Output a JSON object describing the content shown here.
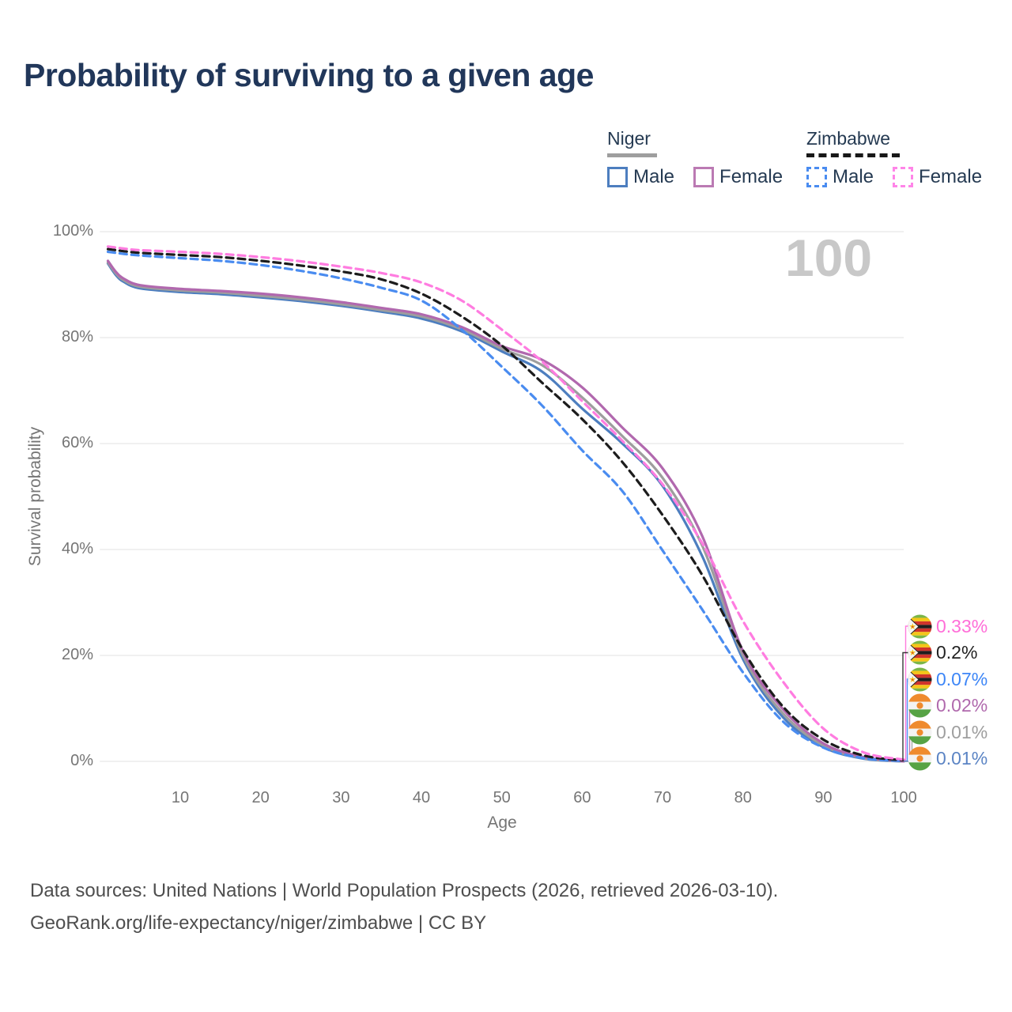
{
  "title": "Probability of surviving to a given age",
  "watermark": "100",
  "legend": {
    "groups": [
      {
        "name": "Niger",
        "line_style": "solid",
        "line_color": "#9e9e9e",
        "items": [
          {
            "label": "Male",
            "color": "#4d7ebf",
            "dashed": false,
            "checked": false
          },
          {
            "label": "Female",
            "color": "#bb7ab3",
            "dashed": false,
            "checked": false
          }
        ]
      },
      {
        "name": "Zimbabwe",
        "line_style": "dashed",
        "line_color": "#181818",
        "items": [
          {
            "label": "Male",
            "color": "#4a8cf0",
            "dashed": true,
            "checked": false
          },
          {
            "label": "Female",
            "color": "#ff85e8",
            "dashed": true,
            "checked": false
          }
        ]
      }
    ]
  },
  "chart_data": {
    "type": "line",
    "title": "Probability of surviving to a given age",
    "xlabel": "Age",
    "ylabel": "Survival probability",
    "xlim": [
      0,
      104
    ],
    "ylim": [
      0,
      100
    ],
    "grid": true,
    "x_ticks": [
      10,
      20,
      30,
      40,
      50,
      60,
      70,
      80,
      90,
      100
    ],
    "y_tick_values": [
      0,
      20,
      40,
      60,
      80,
      100
    ],
    "y_tick_labels": [
      "0%",
      "20%",
      "40%",
      "60%",
      "80%",
      "100%"
    ],
    "ages": [
      1,
      2,
      3,
      5,
      10,
      15,
      20,
      25,
      30,
      35,
      40,
      45,
      50,
      55,
      60,
      65,
      70,
      75,
      80,
      85,
      90,
      95,
      100
    ],
    "series": [
      {
        "id": "niger-male",
        "name": "Niger Male",
        "color": "#4d7ebf",
        "dash": false,
        "values": [
          94.0,
          91.8,
          90.5,
          89.3,
          88.6,
          88.2,
          87.6,
          86.9,
          86.0,
          84.9,
          83.6,
          81.2,
          77.4,
          73.6,
          66.6,
          60.0,
          52.0,
          38.5,
          19.3,
          8.3,
          2.7,
          0.5,
          0.01
        ]
      },
      {
        "id": "niger-total",
        "name": "Niger",
        "color": "#9e9e9e",
        "dash": false,
        "values": [
          94.2,
          92.1,
          90.8,
          89.6,
          88.9,
          88.5,
          87.9,
          87.2,
          86.3,
          85.2,
          84.0,
          81.6,
          77.9,
          74.8,
          68.7,
          61.4,
          53.5,
          40.5,
          20.0,
          9.0,
          3.0,
          0.6,
          0.01
        ]
      },
      {
        "id": "niger-female",
        "name": "Niger Female",
        "color": "#b168ae",
        "dash": false,
        "values": [
          94.5,
          92.4,
          91.1,
          89.9,
          89.2,
          88.8,
          88.3,
          87.6,
          86.7,
          85.6,
          84.4,
          82.0,
          78.4,
          75.8,
          70.6,
          63.0,
          55.3,
          42.3,
          20.8,
          9.8,
          3.4,
          0.8,
          0.02
        ]
      },
      {
        "id": "zimbabwe-male",
        "name": "Zimbabwe Male",
        "color": "#4a8cf0",
        "dash": true,
        "values": [
          96.2,
          96.0,
          95.8,
          95.5,
          95.0,
          94.5,
          93.7,
          92.6,
          91.2,
          89.4,
          87.0,
          81.5,
          74.5,
          67.2,
          58.7,
          51.0,
          39.8,
          28.5,
          16.8,
          7.5,
          2.6,
          0.6,
          0.07
        ]
      },
      {
        "id": "zimbabwe-total",
        "name": "Zimbabwe",
        "color": "#1c1c1c",
        "dash": true,
        "values": [
          96.7,
          96.5,
          96.3,
          96.0,
          95.6,
          95.2,
          94.5,
          93.6,
          92.5,
          91.0,
          88.3,
          84.0,
          78.5,
          71.5,
          64.6,
          56.5,
          46.5,
          35.0,
          21.0,
          10.3,
          4.1,
          1.1,
          0.2
        ]
      },
      {
        "id": "zimbabwe-female",
        "name": "Zimbabwe Female",
        "color": "#ff7ce0",
        "dash": true,
        "values": [
          97.2,
          97.0,
          96.8,
          96.5,
          96.2,
          95.8,
          95.2,
          94.4,
          93.4,
          92.2,
          90.4,
          87.0,
          81.5,
          75.5,
          68.0,
          60.5,
          52.3,
          41.0,
          26.5,
          15.0,
          6.2,
          1.7,
          0.33
        ]
      }
    ],
    "legend_position": "top-right",
    "end_labels": [
      {
        "text": "0.33%",
        "color": "#ff6ed8",
        "flag": "zimbabwe",
        "series": "zimbabwe-female"
      },
      {
        "text": "0.2%",
        "color": "#222222",
        "flag": "zimbabwe",
        "series": "zimbabwe-total"
      },
      {
        "text": "0.07%",
        "color": "#3d86f7",
        "flag": "zimbabwe",
        "series": "zimbabwe-male"
      },
      {
        "text": "0.02%",
        "color": "#b069ad",
        "flag": "niger",
        "series": "niger-female"
      },
      {
        "text": "0.01%",
        "color": "#9e9e9e",
        "flag": "niger",
        "series": "niger-total"
      },
      {
        "text": "0.01%",
        "color": "#5b84c4",
        "flag": "niger",
        "series": "niger-male"
      }
    ]
  },
  "footer": {
    "line1": "Data sources: United Nations | World Population Prospects (2026, retrieved 2026-03-10).",
    "line2": "GeoRank.org/life-expectancy/niger/zimbabwe | CC BY"
  }
}
